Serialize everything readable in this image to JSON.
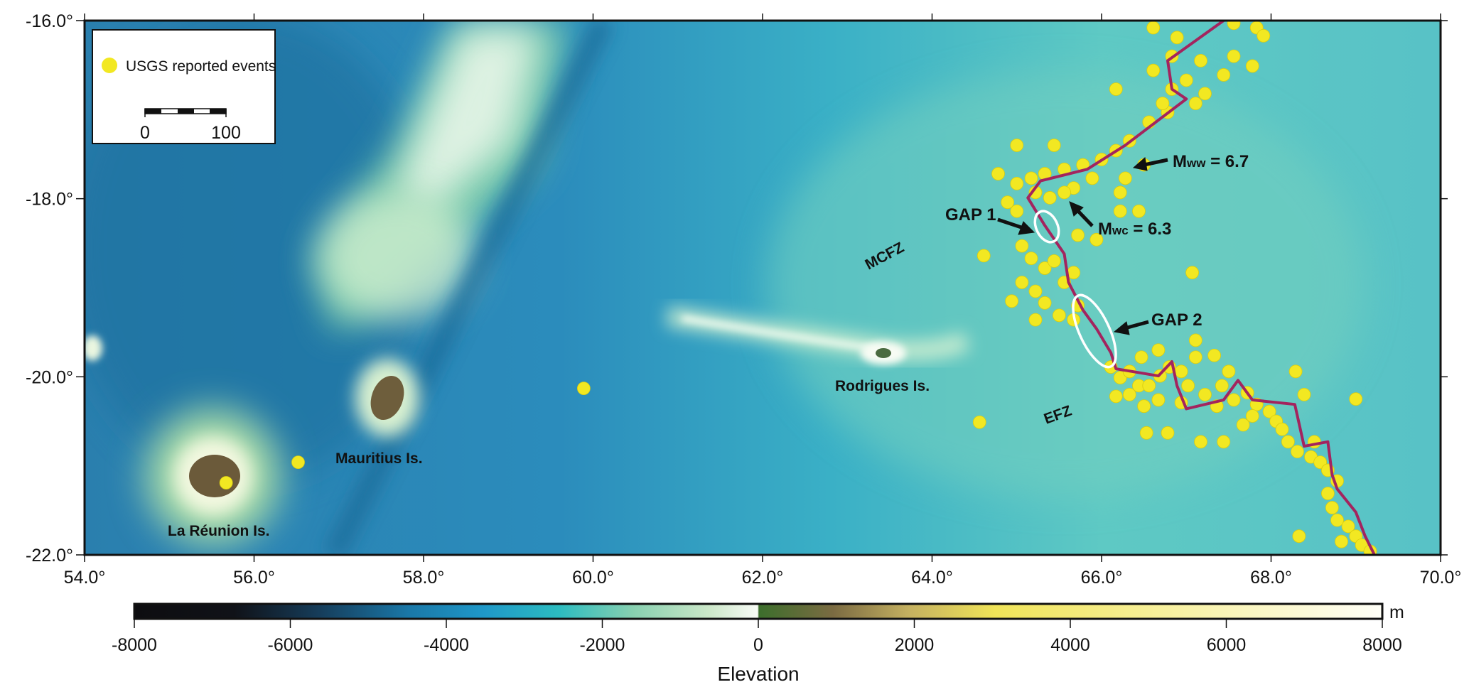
{
  "map": {
    "extent": {
      "lon": [
        54,
        70
      ],
      "lat": [
        -22,
        -16
      ]
    },
    "lon_ticks": [
      "54.0°",
      "56.0°",
      "58.0°",
      "60.0°",
      "62.0°",
      "64.0°",
      "66.0°",
      "68.0°",
      "70.0°"
    ],
    "lat_ticks": [
      "-16.0°",
      "-18.0°",
      "-20.0°",
      "-22.0°"
    ],
    "legend": {
      "label": "USGS reported events",
      "scale_min": "0",
      "scale_max": "100",
      "event_color": "#f2e822"
    },
    "places": {
      "reunion": "La Réunion Is.",
      "mauritius": "Mauritius Is.",
      "rodrigues": "Rodrigues Is.",
      "mcfz": "MCFZ",
      "efz": "EFZ"
    },
    "annotations": {
      "gap1": "GAP 1",
      "gap2": "GAP 2",
      "mww_m": "M",
      "mww_sub": "ww",
      "mww_val": " = 6.7",
      "mwc_m": "M",
      "mwc_sub": "wc",
      "mwc_val": " = 6.3"
    },
    "plate_boundary_color": "#a3245e",
    "plate_boundary": [
      [
        67.44,
        -16.0
      ],
      [
        66.78,
        -16.45
      ],
      [
        66.83,
        -16.77
      ],
      [
        67.0,
        -16.88
      ],
      [
        66.28,
        -17.4
      ],
      [
        65.83,
        -17.67
      ],
      [
        65.28,
        -17.8
      ],
      [
        65.13,
        -17.99
      ],
      [
        65.33,
        -18.3
      ],
      [
        65.56,
        -18.62
      ],
      [
        65.61,
        -18.94
      ],
      [
        65.78,
        -19.25
      ],
      [
        65.94,
        -19.46
      ],
      [
        66.11,
        -19.73
      ],
      [
        66.17,
        -19.91
      ],
      [
        66.67,
        -19.99
      ],
      [
        66.83,
        -19.83
      ],
      [
        66.89,
        -20.1
      ],
      [
        67.0,
        -20.36
      ],
      [
        67.44,
        -20.26
      ],
      [
        67.61,
        -20.04
      ],
      [
        67.78,
        -20.26
      ],
      [
        68.28,
        -20.31
      ],
      [
        68.39,
        -20.78
      ],
      [
        68.67,
        -20.73
      ],
      [
        68.72,
        -21.1
      ],
      [
        68.78,
        -21.26
      ],
      [
        69.0,
        -21.52
      ],
      [
        69.11,
        -21.79
      ],
      [
        69.22,
        -22.0
      ]
    ],
    "events": [
      [
        66.61,
        -16.08
      ],
      [
        66.89,
        -16.19
      ],
      [
        67.56,
        -16.03
      ],
      [
        67.83,
        -16.08
      ],
      [
        67.91,
        -16.17
      ],
      [
        67.56,
        -16.4
      ],
      [
        67.44,
        -16.61
      ],
      [
        67.0,
        -16.67
      ],
      [
        66.83,
        -16.77
      ],
      [
        67.11,
        -16.93
      ],
      [
        67.22,
        -16.82
      ],
      [
        66.78,
        -17.03
      ],
      [
        66.56,
        -17.14
      ],
      [
        66.33,
        -17.35
      ],
      [
        66.17,
        -17.46
      ],
      [
        66.0,
        -17.56
      ],
      [
        65.78,
        -17.62
      ],
      [
        65.56,
        -17.67
      ],
      [
        65.33,
        -17.72
      ],
      [
        65.17,
        -17.77
      ],
      [
        65.0,
        -17.83
      ],
      [
        64.78,
        -17.72
      ],
      [
        65.67,
        -17.88
      ],
      [
        65.89,
        -17.77
      ],
      [
        66.72,
        -16.93
      ],
      [
        66.61,
        -16.56
      ],
      [
        66.83,
        -16.4
      ],
      [
        67.17,
        -16.45
      ],
      [
        67.78,
        -16.51
      ],
      [
        66.17,
        -16.77
      ],
      [
        65.0,
        -17.4
      ],
      [
        65.44,
        -17.4
      ],
      [
        66.5,
        -17.62
      ],
      [
        66.28,
        -17.77
      ],
      [
        66.22,
        -17.93
      ],
      [
        65.0,
        -18.14
      ],
      [
        64.89,
        -18.04
      ],
      [
        65.22,
        -17.93
      ],
      [
        65.39,
        -17.99
      ],
      [
        65.56,
        -17.93
      ],
      [
        65.06,
        -18.53
      ],
      [
        65.17,
        -18.67
      ],
      [
        65.33,
        -18.78
      ],
      [
        65.44,
        -18.7
      ],
      [
        65.06,
        -18.94
      ],
      [
        65.22,
        -19.04
      ],
      [
        65.33,
        -19.17
      ],
      [
        65.56,
        -18.94
      ],
      [
        65.67,
        -18.83
      ],
      [
        65.5,
        -19.31
      ],
      [
        65.72,
        -19.2
      ],
      [
        65.94,
        -18.46
      ],
      [
        65.72,
        -18.41
      ],
      [
        66.44,
        -18.14
      ],
      [
        66.22,
        -18.14
      ],
      [
        64.94,
        -19.15
      ],
      [
        65.22,
        -19.36
      ],
      [
        65.67,
        -19.36
      ],
      [
        64.61,
        -18.64
      ],
      [
        64.56,
        -20.51
      ],
      [
        67.07,
        -18.83
      ],
      [
        66.11,
        -19.89
      ],
      [
        66.22,
        -20.01
      ],
      [
        66.33,
        -19.94
      ],
      [
        66.44,
        -20.1
      ],
      [
        66.17,
        -20.22
      ],
      [
        66.33,
        -20.2
      ],
      [
        66.56,
        -20.1
      ],
      [
        66.69,
        -19.99
      ],
      [
        66.8,
        -19.89
      ],
      [
        66.94,
        -19.94
      ],
      [
        67.02,
        -20.1
      ],
      [
        66.67,
        -20.26
      ],
      [
        66.5,
        -20.33
      ],
      [
        66.94,
        -20.29
      ],
      [
        67.11,
        -19.78
      ],
      [
        67.33,
        -19.76
      ],
      [
        67.5,
        -19.94
      ],
      [
        67.42,
        -20.1
      ],
      [
        67.22,
        -20.2
      ],
      [
        67.36,
        -20.33
      ],
      [
        67.56,
        -20.26
      ],
      [
        67.72,
        -20.18
      ],
      [
        67.83,
        -20.31
      ],
      [
        67.98,
        -20.39
      ],
      [
        68.06,
        -20.5
      ],
      [
        68.13,
        -20.59
      ],
      [
        67.78,
        -20.44
      ],
      [
        67.67,
        -20.54
      ],
      [
        68.2,
        -20.73
      ],
      [
        68.31,
        -20.84
      ],
      [
        68.47,
        -20.9
      ],
      [
        68.58,
        -20.96
      ],
      [
        68.67,
        -21.05
      ],
      [
        68.78,
        -21.17
      ],
      [
        68.67,
        -21.31
      ],
      [
        68.72,
        -21.47
      ],
      [
        68.78,
        -21.61
      ],
      [
        68.91,
        -21.68
      ],
      [
        69.0,
        -21.79
      ],
      [
        68.83,
        -21.85
      ],
      [
        69.07,
        -21.89
      ],
      [
        69.17,
        -21.96
      ],
      [
        68.33,
        -21.79
      ],
      [
        68.51,
        -20.73
      ],
      [
        68.29,
        -19.94
      ],
      [
        68.39,
        -20.2
      ],
      [
        67.44,
        -20.73
      ],
      [
        67.17,
        -20.73
      ],
      [
        66.78,
        -20.63
      ],
      [
        66.53,
        -20.63
      ],
      [
        66.47,
        -19.78
      ],
      [
        66.67,
        -19.7
      ],
      [
        67.11,
        -19.59
      ],
      [
        69.0,
        -20.25
      ],
      [
        59.89,
        -20.13
      ],
      [
        56.52,
        -20.96
      ],
      [
        55.67,
        -21.19
      ]
    ]
  },
  "colorbar": {
    "ticks": [
      "-8000",
      "-6000",
      "-4000",
      "-2000",
      "0",
      "2000",
      "4000",
      "6000",
      "8000"
    ],
    "unit": "m",
    "label": "Elevation",
    "range": [
      -8000,
      8000
    ]
  }
}
